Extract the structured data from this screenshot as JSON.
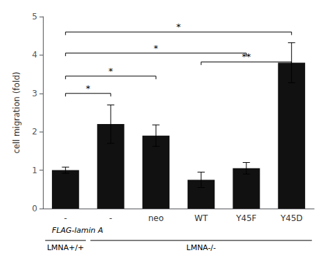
{
  "chart_data": {
    "type": "bar",
    "categories": [
      "-",
      "-",
      "neo",
      "WT",
      "Y45F",
      "Y45D"
    ],
    "values": [
      1.0,
      2.2,
      1.9,
      0.75,
      1.05,
      3.8
    ],
    "errors": [
      0.08,
      0.5,
      0.28,
      0.2,
      0.15,
      0.52
    ],
    "color": "#111111",
    "ylabel": "cell migration (fold)",
    "xlabel": "FLAG-lamin A",
    "ylim": [
      0,
      5.0
    ],
    "yticks": [
      0,
      1,
      2,
      3,
      4,
      5
    ],
    "grid": false,
    "annotations": [
      {
        "from": 0,
        "to": 1,
        "y": 3.0,
        "text": "*"
      },
      {
        "from": 0,
        "to": 2,
        "y": 3.45,
        "text": "*"
      },
      {
        "from": 0,
        "to": 4,
        "y": 4.05,
        "text": "*"
      },
      {
        "from": 0,
        "to": 5,
        "y": 4.6,
        "text": "*"
      },
      {
        "from": 3,
        "to": 5,
        "y": 3.82,
        "text": "**"
      }
    ],
    "groups": [
      {
        "label": "LMNA+/+",
        "from": 0,
        "to": 0
      },
      {
        "label": "LMNA-/-",
        "from": 1,
        "to": 5
      }
    ]
  }
}
